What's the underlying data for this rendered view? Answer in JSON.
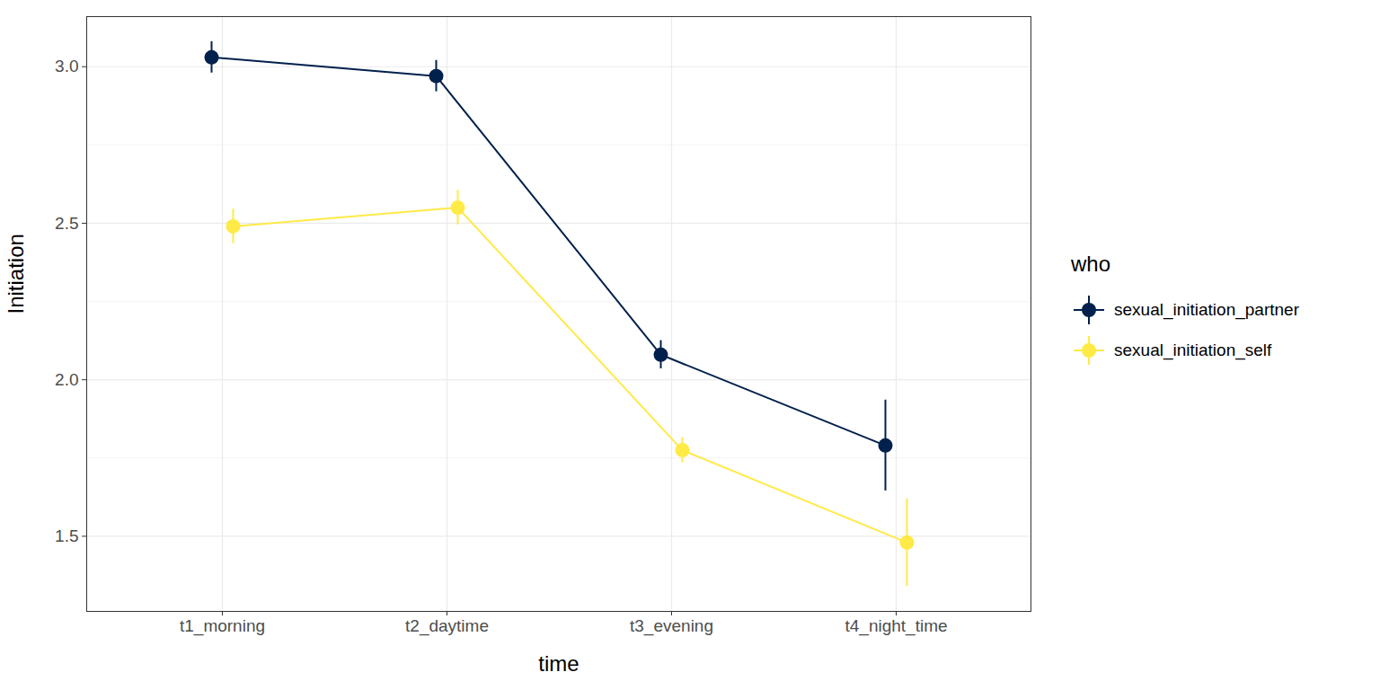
{
  "chart_data": {
    "type": "line",
    "x_label": "time",
    "y_label": "Initiation",
    "categories": [
      "t1_morning",
      "t2_daytime",
      "t3_evening",
      "t4_night_time"
    ],
    "legend_title": "who",
    "series": [
      {
        "name": "sexual_initiation_partner",
        "color": "#00204D",
        "marker": "circle",
        "values": [
          3.03,
          2.97,
          2.08,
          1.79
        ],
        "errors": [
          0.05,
          0.05,
          0.045,
          0.145
        ]
      },
      {
        "name": "sexual_initiation_self",
        "color": "#FFEA46",
        "marker": "circle",
        "values": [
          2.49,
          2.55,
          1.775,
          1.48
        ],
        "errors": [
          0.055,
          0.055,
          0.04,
          0.14
        ]
      }
    ],
    "ylim": [
      1.26,
      3.16
    ],
    "yticks": [
      1.5,
      {
        "value": 2.0,
        "label": "2.0"
      },
      2.5,
      {
        "value": 3.0,
        "label": "3.0"
      }
    ],
    "grid": true,
    "legend": "right"
  }
}
